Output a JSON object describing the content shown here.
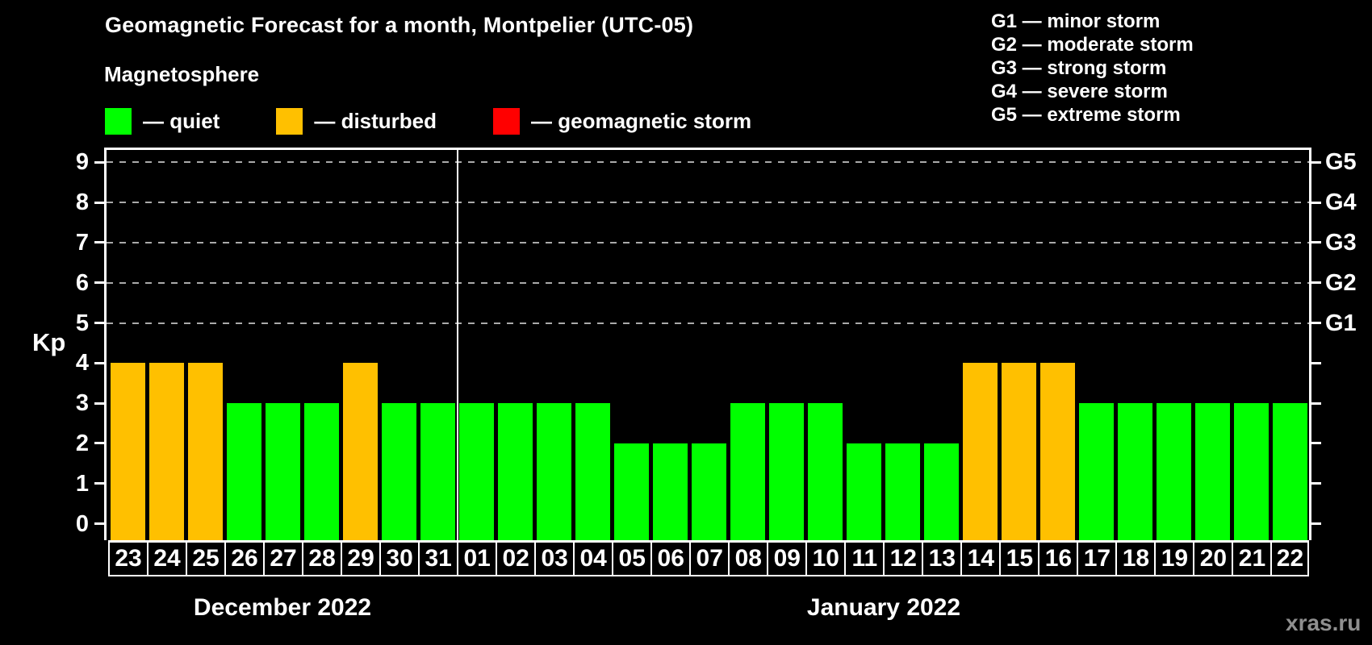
{
  "title": "Geomagnetic Forecast for a month, Montpelier (UTC-05)",
  "subtitle": "Magnetosphere",
  "watermark": "xras.ru",
  "separator_dash": "—",
  "colors": {
    "quiet": "#00ff00",
    "disturbed": "#ffc000",
    "storm": "#ff0000",
    "background": "#000000",
    "axis": "#ffffff",
    "gridline": "#aaaaaa",
    "watermark": "#8f8f8f"
  },
  "legend": {
    "items": [
      {
        "key": "quiet",
        "label": "quiet",
        "color": "#00ff00"
      },
      {
        "key": "disturbed",
        "label": "disturbed",
        "color": "#ffc000"
      },
      {
        "key": "storm",
        "label": "geomagnetic storm",
        "color": "#ff0000"
      }
    ]
  },
  "storm_scale_legend": [
    {
      "code": "G1",
      "label": "minor storm"
    },
    {
      "code": "G2",
      "label": "moderate storm"
    },
    {
      "code": "G3",
      "label": "strong storm"
    },
    {
      "code": "G4",
      "label": "severe storm"
    },
    {
      "code": "G5",
      "label": "extreme storm"
    }
  ],
  "chart_data": {
    "type": "bar",
    "title": "Geomagnetic Forecast for a month, Montpelier (UTC-05)",
    "y_axis": {
      "label": "Kp",
      "range": [
        0,
        9
      ],
      "ticks": [
        0,
        1,
        2,
        3,
        4,
        5,
        6,
        7,
        8,
        9
      ]
    },
    "right_axis": [
      {
        "kp": 5,
        "label": "G1"
      },
      {
        "kp": 6,
        "label": "G2"
      },
      {
        "kp": 7,
        "label": "G3"
      },
      {
        "kp": 8,
        "label": "G4"
      },
      {
        "kp": 9,
        "label": "G5"
      }
    ],
    "gridlines_at_kp": [
      5,
      6,
      7,
      8,
      9
    ],
    "grid": "dashed-horizontal",
    "month_labels": [
      "December 2022",
      "January 2022"
    ],
    "month_day_counts": [
      9,
      22
    ],
    "bars": [
      {
        "day": "23",
        "month": "December 2022",
        "value": 4,
        "status": "disturbed"
      },
      {
        "day": "24",
        "month": "December 2022",
        "value": 4,
        "status": "disturbed"
      },
      {
        "day": "25",
        "month": "December 2022",
        "value": 4,
        "status": "disturbed"
      },
      {
        "day": "26",
        "month": "December 2022",
        "value": 3,
        "status": "quiet"
      },
      {
        "day": "27",
        "month": "December 2022",
        "value": 3,
        "status": "quiet"
      },
      {
        "day": "28",
        "month": "December 2022",
        "value": 3,
        "status": "quiet"
      },
      {
        "day": "29",
        "month": "December 2022",
        "value": 4,
        "status": "disturbed"
      },
      {
        "day": "30",
        "month": "December 2022",
        "value": 3,
        "status": "quiet"
      },
      {
        "day": "31",
        "month": "December 2022",
        "value": 3,
        "status": "quiet"
      },
      {
        "day": "01",
        "month": "January 2022",
        "value": 3,
        "status": "quiet"
      },
      {
        "day": "02",
        "month": "January 2022",
        "value": 3,
        "status": "quiet"
      },
      {
        "day": "03",
        "month": "January 2022",
        "value": 3,
        "status": "quiet"
      },
      {
        "day": "04",
        "month": "January 2022",
        "value": 3,
        "status": "quiet"
      },
      {
        "day": "05",
        "month": "January 2022",
        "value": 2,
        "status": "quiet"
      },
      {
        "day": "06",
        "month": "January 2022",
        "value": 2,
        "status": "quiet"
      },
      {
        "day": "07",
        "month": "January 2022",
        "value": 2,
        "status": "quiet"
      },
      {
        "day": "08",
        "month": "January 2022",
        "value": 3,
        "status": "quiet"
      },
      {
        "day": "09",
        "month": "January 2022",
        "value": 3,
        "status": "quiet"
      },
      {
        "day": "10",
        "month": "January 2022",
        "value": 3,
        "status": "quiet"
      },
      {
        "day": "11",
        "month": "January 2022",
        "value": 2,
        "status": "quiet"
      },
      {
        "day": "12",
        "month": "January 2022",
        "value": 2,
        "status": "quiet"
      },
      {
        "day": "13",
        "month": "January 2022",
        "value": 2,
        "status": "quiet"
      },
      {
        "day": "14",
        "month": "January 2022",
        "value": 4,
        "status": "disturbed"
      },
      {
        "day": "15",
        "month": "January 2022",
        "value": 4,
        "status": "disturbed"
      },
      {
        "day": "16",
        "month": "January 2022",
        "value": 4,
        "status": "disturbed"
      },
      {
        "day": "17",
        "month": "January 2022",
        "value": 3,
        "status": "quiet"
      },
      {
        "day": "18",
        "month": "January 2022",
        "value": 3,
        "status": "quiet"
      },
      {
        "day": "19",
        "month": "January 2022",
        "value": 3,
        "status": "quiet"
      },
      {
        "day": "20",
        "month": "January 2022",
        "value": 3,
        "status": "quiet"
      },
      {
        "day": "21",
        "month": "January 2022",
        "value": 3,
        "status": "quiet"
      },
      {
        "day": "22",
        "month": "January 2022",
        "value": 3,
        "status": "quiet"
      }
    ]
  }
}
